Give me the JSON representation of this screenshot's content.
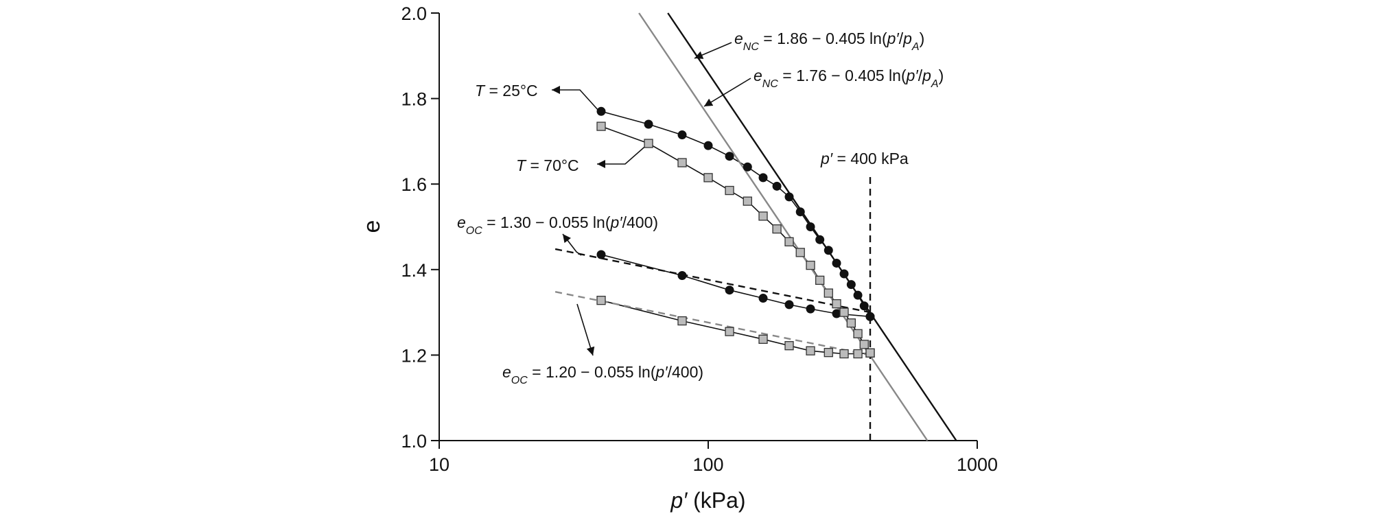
{
  "chart_data": {
    "type": "line",
    "xscale": "log",
    "xlim": [
      10,
      1000
    ],
    "xticks": [
      10,
      100,
      1000
    ],
    "ylim": [
      1.0,
      2.0
    ],
    "yticks": [
      {
        "value": 1.0,
        "label": "1.0"
      },
      1.2,
      1.4,
      1.6,
      1.8,
      {
        "value": 2.0,
        "label": "2.0"
      }
    ],
    "xlabel": [
      [
        "p′",
        "i"
      ],
      [
        " (kPa)",
        "n"
      ]
    ],
    "ylabel": "e",
    "series": [
      {
        "x": [
          40,
          60,
          80,
          100,
          120,
          140,
          160,
          180,
          200,
          220,
          240,
          260,
          280,
          300,
          320,
          340,
          360,
          380,
          400
        ],
        "values": [
          1.77,
          1.74,
          1.715,
          1.69,
          1.665,
          1.64,
          1.615,
          1.595,
          1.57,
          1.535,
          1.5,
          1.47,
          1.445,
          1.415,
          1.39,
          1.365,
          1.34,
          1.315,
          1.29
        ],
        "color": "#111111",
        "line_color": "#111111",
        "marker": "circle",
        "dash": false
      },
      {
        "x": [
          400,
          300,
          240,
          200,
          160,
          120,
          80,
          40
        ],
        "values": [
          1.29,
          1.297,
          1.308,
          1.318,
          1.333,
          1.352,
          1.386,
          1.435
        ],
        "color": "#111111",
        "line_color": "#111111",
        "marker": "circle",
        "dash": false
      },
      {
        "x": [
          40,
          60,
          80,
          100,
          120,
          140,
          160,
          180,
          200,
          220,
          240,
          260,
          280,
          300,
          320,
          340,
          360,
          380,
          400
        ],
        "values": [
          1.735,
          1.695,
          1.65,
          1.615,
          1.585,
          1.56,
          1.525,
          1.495,
          1.465,
          1.44,
          1.41,
          1.375,
          1.345,
          1.32,
          1.3,
          1.275,
          1.25,
          1.225,
          1.205
        ],
        "color": "#bbbbbb",
        "line_color": "#111111",
        "marker": "square",
        "dash": false
      },
      {
        "x": [
          400,
          360,
          320,
          280,
          240,
          200,
          160,
          120,
          80,
          40
        ],
        "values": [
          1.205,
          1.203,
          1.203,
          1.206,
          1.21,
          1.222,
          1.237,
          1.255,
          1.28,
          1.328
        ],
        "color": "#bbbbbb",
        "line_color": "#111111",
        "marker": "square",
        "dash": false
      },
      {
        "x": [
          70.8,
          836
        ],
        "values": [
          2.0,
          1.0
        ],
        "color": "#111111",
        "line_color": "#111111",
        "marker": "none",
        "dash": false
      },
      {
        "x": [
          55.3,
          653
        ],
        "values": [
          2.0,
          1.0
        ],
        "color": "#888888",
        "line_color": "#888888",
        "marker": "none",
        "dash": false
      },
      {
        "x": [
          27,
          400
        ],
        "values": [
          1.448,
          1.3
        ],
        "color": "#111111",
        "line_color": "#111111",
        "marker": "none",
        "dash": true
      },
      {
        "x": [
          27,
          400
        ],
        "values": [
          1.348,
          1.2
        ],
        "color": "#888888",
        "line_color": "#888888",
        "marker": "none",
        "dash": true
      },
      {
        "x": [
          400,
          400
        ],
        "values": [
          1.0,
          1.62
        ],
        "color": "#111111",
        "line_color": "#111111",
        "marker": "none",
        "dash": true
      }
    ],
    "annotations": [
      {
        "segments": [
          [
            "e",
            "i"
          ],
          [
            "NC",
            "sub"
          ],
          [
            " = 1.86 − 0.405 ln(",
            "n"
          ],
          [
            "p′",
            "i"
          ],
          [
            "/",
            "n"
          ],
          [
            "p",
            "i"
          ],
          [
            "A",
            "sub"
          ],
          [
            ")",
            "n"
          ]
        ]
      },
      {
        "segments": [
          [
            "e",
            "i"
          ],
          [
            "NC",
            "sub"
          ],
          [
            " = 1.76 − 0.405 ln(",
            "n"
          ],
          [
            "p′",
            "i"
          ],
          [
            "/",
            "n"
          ],
          [
            "p",
            "i"
          ],
          [
            "A",
            "sub"
          ],
          [
            ")",
            "n"
          ]
        ]
      },
      {
        "segments": [
          [
            "T",
            "i"
          ],
          [
            " = 25°C",
            "n"
          ]
        ]
      },
      {
        "segments": [
          [
            "T",
            "i"
          ],
          [
            " = 70°C",
            "n"
          ]
        ]
      },
      {
        "segments": [
          [
            "e",
            "i"
          ],
          [
            "OC",
            "sub"
          ],
          [
            " = 1.30 − 0.055 ln(",
            "n"
          ],
          [
            "p′",
            "i"
          ],
          [
            "/400)",
            "n"
          ]
        ]
      },
      {
        "segments": [
          [
            "e",
            "i"
          ],
          [
            "OC",
            "sub"
          ],
          [
            " = 1.20 − 0.055 ln(",
            "n"
          ],
          [
            "p′",
            "i"
          ],
          [
            "/400)",
            "n"
          ]
        ]
      },
      {
        "segments": [
          [
            "p′",
            "i"
          ],
          [
            " = 400 kPa",
            "n"
          ]
        ]
      }
    ]
  }
}
